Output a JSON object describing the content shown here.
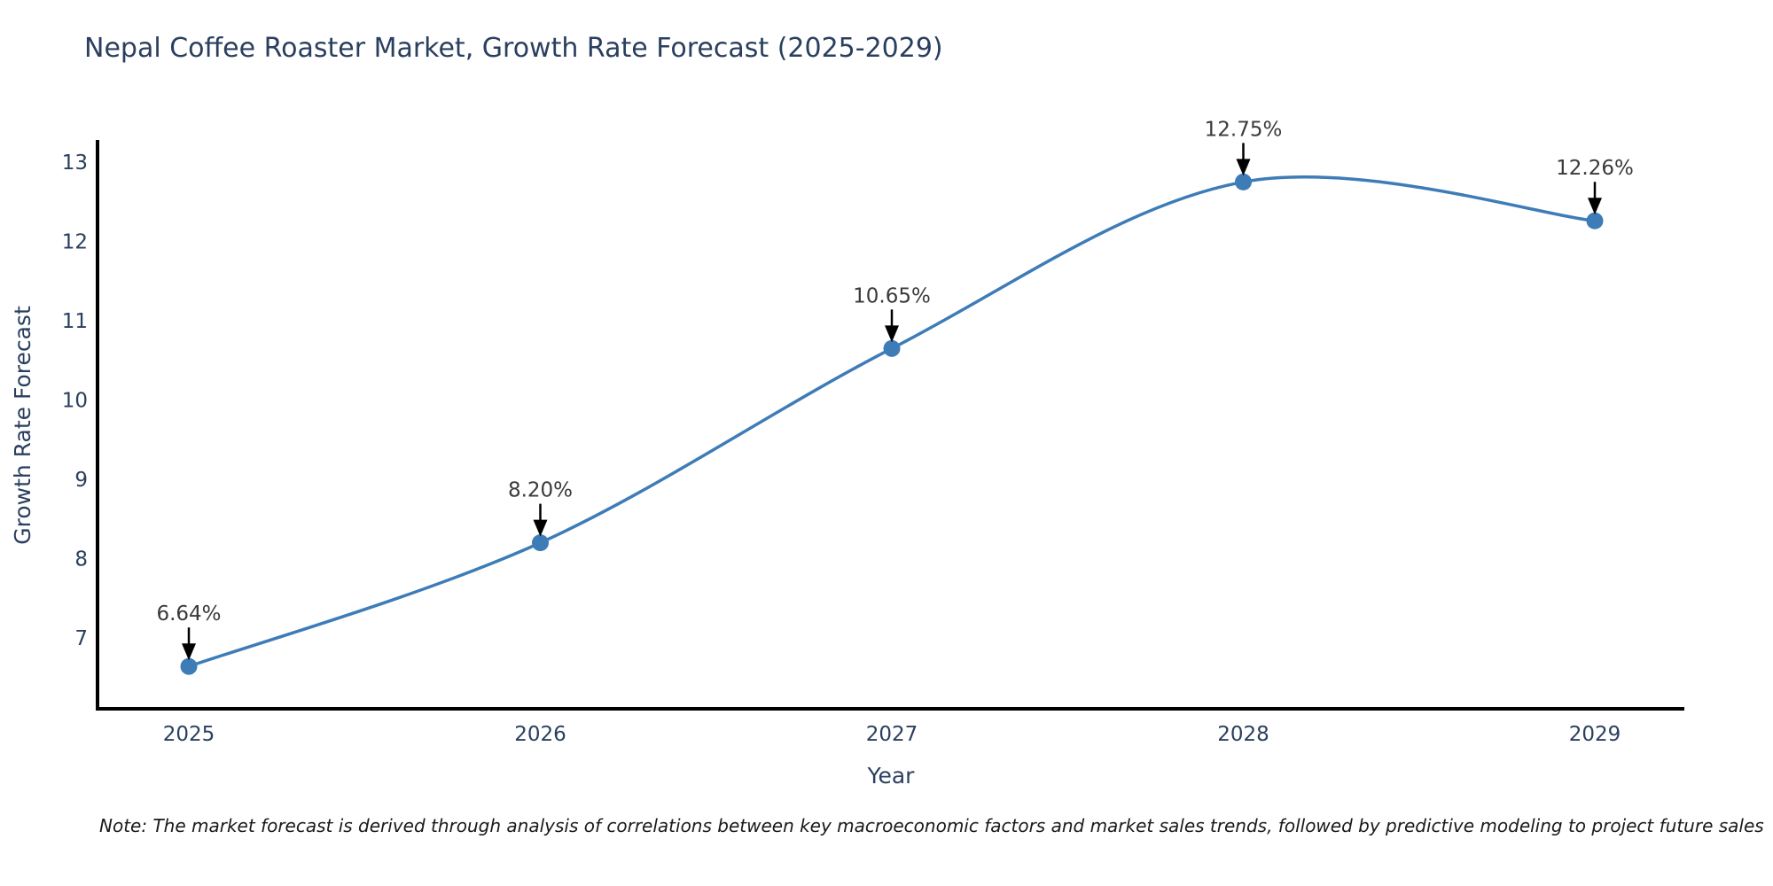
{
  "chart": {
    "colors": {
      "background": "#ffffff",
      "line": "#3e7cb7",
      "marker": "#3e7cb7",
      "axis_line": "#000000",
      "title_text": "#2a3f5f",
      "tick_text": "#2a3f5f",
      "annotation_text": "#3a3a3a",
      "arrow": "#000000",
      "note_text": "#1a1a1a"
    }
  },
  "chart_data": {
    "type": "line",
    "title": "Nepal Coffee Roaster Market, Growth Rate Forecast (2025-2029)",
    "xlabel": "Year",
    "ylabel": "Growth Rate Forecast",
    "x": [
      2025,
      2026,
      2027,
      2028,
      2029
    ],
    "values": [
      6.64,
      8.2,
      10.65,
      12.75,
      12.26
    ],
    "point_labels": [
      "6.64%",
      "8.20%",
      "10.65%",
      "12.75%",
      "12.26%"
    ],
    "yticks": [
      7,
      8,
      9,
      10,
      11,
      12,
      13
    ],
    "ylim": [
      6.1,
      13.26
    ],
    "xlim": [
      2024.74,
      2029.25
    ],
    "line_shape": "spline",
    "markers": true,
    "grid": false,
    "legend": false,
    "note": "Note: The market forecast is derived through analysis of correlations between key macroeconomic factors and market sales trends, followed by predictive modeling to project future sales"
  }
}
